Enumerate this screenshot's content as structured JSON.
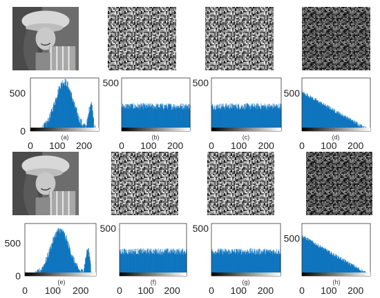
{
  "figure": {
    "rows": [
      {
        "images": [
          {
            "name": "girl-photo-original",
            "kind": "photo"
          },
          {
            "name": "encrypted-noise-b",
            "kind": "noise",
            "tone": "uniform"
          },
          {
            "name": "encrypted-noise-c",
            "kind": "noise",
            "tone": "uniform"
          },
          {
            "name": "encrypted-noise-d",
            "kind": "noise",
            "tone": "dark"
          }
        ]
      },
      {
        "images": [
          {
            "name": "girl-photo-original",
            "kind": "photo"
          },
          {
            "name": "encrypted-noise-f",
            "kind": "noise",
            "tone": "uniform"
          },
          {
            "name": "encrypted-noise-g",
            "kind": "noise",
            "tone": "uniform"
          },
          {
            "name": "encrypted-noise-h",
            "kind": "noise",
            "tone": "dark"
          }
        ]
      }
    ]
  },
  "colors": {
    "bars": "#0a72bd",
    "frame": "#333333",
    "axis_text": "#222222"
  },
  "chart_data": [
    {
      "type": "bar",
      "caption": "(a)",
      "shape": "photo",
      "xlim": [
        0,
        255
      ],
      "ylim": [
        0,
        700
      ],
      "xticks": [
        0,
        100,
        200
      ],
      "yticks": [
        0,
        500
      ],
      "yticks_visible": [
        true,
        true
      ],
      "peak": 650
    },
    {
      "type": "bar",
      "caption": "(b)",
      "shape": "uniform",
      "xlim": [
        0,
        255
      ],
      "ylim": [
        0,
        550
      ],
      "xticks": [
        0,
        100,
        200
      ],
      "yticks": [
        0,
        500
      ],
      "yticks_visible": [
        false,
        true
      ],
      "level": 255
    },
    {
      "type": "bar",
      "caption": "(c)",
      "shape": "uniform",
      "xlim": [
        0,
        255
      ],
      "ylim": [
        0,
        550
      ],
      "xticks": [
        0,
        100,
        200
      ],
      "yticks": [
        0,
        500
      ],
      "yticks_visible": [
        false,
        true
      ],
      "level": 255
    },
    {
      "type": "bar",
      "caption": "(d)",
      "shape": "ramp",
      "xlim": [
        0,
        255
      ],
      "ylim": [
        0,
        700
      ],
      "xticks": [
        0,
        100,
        200
      ],
      "yticks": [
        0,
        500
      ],
      "yticks_visible": [
        false,
        true
      ],
      "start": 510
    },
    {
      "type": "bar",
      "caption": "(e)",
      "shape": "photo",
      "xlim": [
        0,
        255
      ],
      "ylim": [
        0,
        800
      ],
      "xticks": [
        0,
        100,
        200
      ],
      "yticks": [
        0,
        500
      ],
      "yticks_visible": [
        true,
        true
      ],
      "peak": 700
    },
    {
      "type": "bar",
      "caption": "(f)",
      "shape": "uniform",
      "xlim": [
        0,
        255
      ],
      "ylim": [
        0,
        550
      ],
      "xticks": [
        0,
        100,
        200
      ],
      "yticks": [
        0,
        500
      ],
      "yticks_visible": [
        false,
        true
      ],
      "level": 255
    },
    {
      "type": "bar",
      "caption": "(g)",
      "shape": "uniform",
      "xlim": [
        0,
        255
      ],
      "ylim": [
        0,
        550
      ],
      "xticks": [
        0,
        100,
        200
      ],
      "yticks": [
        0,
        500
      ],
      "yticks_visible": [
        false,
        true
      ],
      "level": 255
    },
    {
      "type": "bar",
      "caption": "(h)",
      "shape": "ramp",
      "xlim": [
        0,
        255
      ],
      "ylim": [
        0,
        700
      ],
      "xticks": [
        0,
        100,
        200
      ],
      "yticks": [
        0,
        500
      ],
      "yticks_visible": [
        false,
        true
      ],
      "start": 530
    }
  ]
}
